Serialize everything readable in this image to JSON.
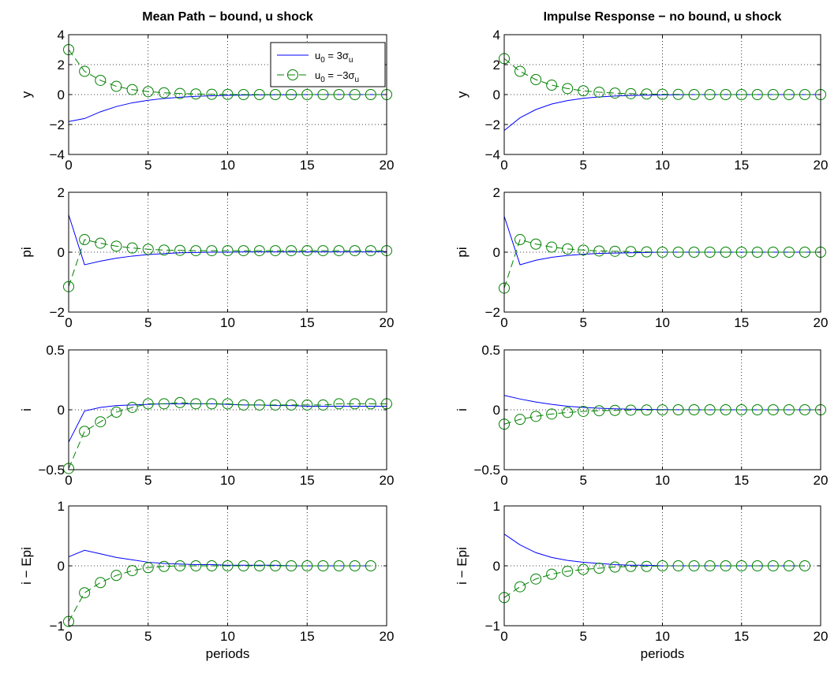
{
  "chart_data": [
    {
      "type": "line",
      "panel": "y-left",
      "title": "Mean Path − bound, u shock",
      "ylabel": "y",
      "xlabel": "",
      "xlim": [
        0,
        20
      ],
      "ylim": [
        -4,
        4
      ],
      "xticks": [
        "0",
        "5",
        "10",
        "15",
        "20"
      ],
      "yticks": [
        "−4",
        "−2",
        "0",
        "2",
        "4"
      ],
      "grid": true,
      "legend": {
        "position": "top-right",
        "entries": [
          {
            "series": 0,
            "prefix": "u",
            "sub1": "0",
            "mid": " =  3σ",
            "sub2": "u"
          },
          {
            "series": 1,
            "prefix": "u",
            "sub1": "0",
            "mid": " = −3σ",
            "sub2": "u"
          }
        ]
      },
      "series": [
        {
          "color": "#0000ff",
          "style": "solid",
          "marker": "none",
          "x": [
            0,
            1,
            2,
            3,
            4,
            5,
            6,
            7,
            8,
            9,
            10,
            11,
            12,
            13,
            14,
            15,
            16,
            17,
            18,
            19,
            20
          ],
          "values": [
            -1.8,
            -1.6,
            -1.15,
            -0.8,
            -0.55,
            -0.38,
            -0.26,
            -0.18,
            -0.12,
            -0.08,
            -0.05,
            -0.03,
            -0.02,
            -0.01,
            -0.01,
            0,
            0,
            0,
            0,
            0,
            0
          ]
        },
        {
          "color": "#008000",
          "style": "dashed",
          "marker": "circle",
          "x": [
            0,
            1,
            2,
            3,
            4,
            5,
            6,
            7,
            8,
            9,
            10,
            11,
            12,
            13,
            14,
            15,
            16,
            17,
            18,
            19,
            20
          ],
          "values": [
            3.0,
            1.55,
            0.95,
            0.55,
            0.33,
            0.2,
            0.12,
            0.07,
            0.04,
            0.02,
            0.01,
            0,
            0,
            0,
            0,
            0,
            0,
            0,
            0,
            0,
            0
          ]
        }
      ]
    },
    {
      "type": "line",
      "panel": "y-right",
      "title": "Impulse Response − no bound, u shock",
      "ylabel": "y",
      "xlabel": "",
      "xlim": [
        0,
        20
      ],
      "ylim": [
        -4,
        4
      ],
      "xticks": [
        "0",
        "5",
        "10",
        "15",
        "20"
      ],
      "yticks": [
        "−4",
        "−2",
        "0",
        "2",
        "4"
      ],
      "grid": true,
      "series": [
        {
          "color": "#0000ff",
          "style": "solid",
          "marker": "none",
          "x": [
            0,
            1,
            2,
            3,
            4,
            5,
            6,
            7,
            8,
            9,
            10,
            11,
            12,
            13,
            14,
            15,
            16,
            17,
            18,
            19,
            20
          ],
          "values": [
            -2.4,
            -1.55,
            -1.0,
            -0.63,
            -0.4,
            -0.25,
            -0.16,
            -0.1,
            -0.06,
            -0.04,
            -0.02,
            -0.01,
            0,
            0,
            0,
            0,
            0,
            0,
            0,
            0,
            0
          ]
        },
        {
          "color": "#008000",
          "style": "dashed",
          "marker": "circle",
          "x": [
            0,
            1,
            2,
            3,
            4,
            5,
            6,
            7,
            8,
            9,
            10,
            11,
            12,
            13,
            14,
            15,
            16,
            17,
            18,
            19,
            20
          ],
          "values": [
            2.4,
            1.55,
            1.0,
            0.63,
            0.4,
            0.25,
            0.16,
            0.1,
            0.06,
            0.04,
            0.02,
            0.01,
            0,
            0,
            0,
            0,
            0,
            0,
            0,
            0,
            0
          ]
        }
      ]
    },
    {
      "type": "line",
      "panel": "pi-left",
      "title": "",
      "ylabel": "pi",
      "xlabel": "",
      "xlim": [
        0,
        20
      ],
      "ylim": [
        -2,
        2
      ],
      "xticks": [
        "0",
        "5",
        "10",
        "15",
        "20"
      ],
      "yticks": [
        "−2",
        "0",
        "2"
      ],
      "grid": true,
      "series": [
        {
          "color": "#0000ff",
          "style": "solid",
          "marker": "none",
          "x": [
            0,
            1,
            2,
            3,
            4,
            5,
            6,
            7,
            8,
            9,
            10,
            11,
            12,
            13,
            14,
            15,
            16,
            17,
            18,
            19,
            20
          ],
          "values": [
            1.25,
            -0.42,
            -0.3,
            -0.2,
            -0.13,
            -0.08,
            -0.05,
            -0.02,
            -0.01,
            0,
            0,
            0.01,
            0.01,
            0.01,
            0.01,
            0.01,
            0.01,
            0.01,
            0.01,
            0.01,
            0.02
          ]
        },
        {
          "color": "#008000",
          "style": "dashed",
          "marker": "circle",
          "x": [
            0,
            1,
            2,
            3,
            4,
            5,
            6,
            7,
            8,
            9,
            10,
            11,
            12,
            13,
            14,
            15,
            16,
            17,
            18,
            19,
            20
          ],
          "values": [
            -1.15,
            0.42,
            0.3,
            0.2,
            0.14,
            0.1,
            0.07,
            0.06,
            0.05,
            0.05,
            0.05,
            0.05,
            0.05,
            0.05,
            0.05,
            0.05,
            0.05,
            0.05,
            0.05,
            0.05,
            0.05
          ]
        }
      ]
    },
    {
      "type": "line",
      "panel": "pi-right",
      "title": "",
      "ylabel": "pi",
      "xlabel": "",
      "xlim": [
        0,
        20
      ],
      "ylim": [
        -2,
        2
      ],
      "xticks": [
        "0",
        "5",
        "10",
        "15",
        "20"
      ],
      "yticks": [
        "−2",
        "0",
        "2"
      ],
      "grid": true,
      "series": [
        {
          "color": "#0000ff",
          "style": "solid",
          "marker": "none",
          "x": [
            0,
            1,
            2,
            3,
            4,
            5,
            6,
            7,
            8,
            9,
            10,
            11,
            12,
            13,
            14,
            15,
            16,
            17,
            18,
            19,
            20
          ],
          "values": [
            1.2,
            -0.42,
            -0.27,
            -0.17,
            -0.11,
            -0.07,
            -0.04,
            -0.03,
            -0.02,
            -0.01,
            0,
            0,
            0,
            0,
            0,
            0,
            0,
            0,
            0,
            0,
            0
          ]
        },
        {
          "color": "#008000",
          "style": "dashed",
          "marker": "circle",
          "x": [
            0,
            1,
            2,
            3,
            4,
            5,
            6,
            7,
            8,
            9,
            10,
            11,
            12,
            13,
            14,
            15,
            16,
            17,
            18,
            19,
            20
          ],
          "values": [
            -1.2,
            0.42,
            0.27,
            0.17,
            0.11,
            0.07,
            0.04,
            0.03,
            0.02,
            0.01,
            0,
            0,
            0,
            0,
            0,
            0,
            0,
            0,
            0,
            0,
            0
          ]
        }
      ]
    },
    {
      "type": "line",
      "panel": "i-left",
      "title": "",
      "ylabel": "i",
      "xlabel": "",
      "xlim": [
        0,
        20
      ],
      "ylim": [
        -0.5,
        0.5
      ],
      "xticks": [
        "0",
        "5",
        "10",
        "15",
        "20"
      ],
      "yticks": [
        "−0.5",
        "0",
        "0.5"
      ],
      "grid": true,
      "series": [
        {
          "color": "#0000ff",
          "style": "solid",
          "marker": "none",
          "x": [
            0,
            1,
            2,
            3,
            4,
            5,
            6,
            7,
            8,
            9,
            10,
            11,
            12,
            13,
            14,
            15,
            16,
            17,
            18,
            19,
            20
          ],
          "values": [
            -0.27,
            -0.01,
            0.02,
            0.035,
            0.04,
            0.045,
            0.05,
            0.05,
            0.05,
            0.05,
            0.045,
            0.04,
            0.04,
            0.035,
            0.035,
            0.03,
            0.03,
            0.03,
            0.03,
            0.03,
            0.03
          ]
        },
        {
          "color": "#008000",
          "style": "dashed",
          "marker": "circle",
          "x": [
            0,
            1,
            2,
            3,
            4,
            5,
            6,
            7,
            8,
            9,
            10,
            11,
            12,
            13,
            14,
            15,
            16,
            17,
            18,
            19,
            20
          ],
          "values": [
            -0.49,
            -0.18,
            -0.1,
            -0.02,
            0.02,
            0.05,
            0.05,
            0.06,
            0.05,
            0.05,
            0.05,
            0.04,
            0.04,
            0.04,
            0.04,
            0.04,
            0.04,
            0.05,
            0.05,
            0.05,
            0.05
          ]
        }
      ]
    },
    {
      "type": "line",
      "panel": "i-right",
      "title": "",
      "ylabel": "i",
      "xlabel": "",
      "xlim": [
        0,
        20
      ],
      "ylim": [
        -0.5,
        0.5
      ],
      "xticks": [
        "0",
        "5",
        "10",
        "15",
        "20"
      ],
      "yticks": [
        "−0.5",
        "0",
        "0.5"
      ],
      "grid": true,
      "series": [
        {
          "color": "#0000ff",
          "style": "solid",
          "marker": "none",
          "x": [
            0,
            1,
            2,
            3,
            4,
            5,
            6,
            7,
            8,
            9,
            10,
            11,
            12,
            13,
            14,
            15,
            16,
            17,
            18,
            19,
            20
          ],
          "values": [
            0.12,
            0.09,
            0.065,
            0.045,
            0.03,
            0.02,
            0.013,
            0.008,
            0.005,
            0.003,
            0.002,
            0.001,
            0,
            0,
            0,
            0,
            0,
            0,
            0,
            0,
            0
          ]
        },
        {
          "color": "#008000",
          "style": "dashed",
          "marker": "circle",
          "x": [
            0,
            1,
            2,
            3,
            4,
            5,
            6,
            7,
            8,
            9,
            10,
            11,
            12,
            13,
            14,
            15,
            16,
            17,
            18,
            19,
            20
          ],
          "values": [
            -0.12,
            -0.08,
            -0.055,
            -0.035,
            -0.022,
            -0.013,
            -0.008,
            -0.005,
            -0.003,
            -0.002,
            -0.001,
            0,
            0,
            0,
            0,
            0,
            0,
            0,
            0,
            0,
            0
          ]
        }
      ]
    },
    {
      "type": "line",
      "panel": "iepi-left",
      "title": "",
      "ylabel": "i − Epi",
      "xlabel": "periods",
      "xlim": [
        0,
        20
      ],
      "ylim": [
        -1,
        1
      ],
      "xticks": [
        "0",
        "5",
        "10",
        "15",
        "20"
      ],
      "yticks": [
        "−1",
        "0",
        "1"
      ],
      "grid": true,
      "series": [
        {
          "color": "#0000ff",
          "style": "solid",
          "marker": "none",
          "x": [
            0,
            1,
            2,
            3,
            4,
            5,
            6,
            7,
            8,
            9,
            10,
            11,
            12,
            13,
            14,
            15,
            16,
            17,
            18,
            19
          ],
          "values": [
            0.15,
            0.26,
            0.2,
            0.14,
            0.1,
            0.06,
            0.04,
            0.03,
            0.02,
            0.02,
            0.01,
            0.01,
            0.01,
            0.01,
            0,
            0,
            0,
            0,
            0,
            0
          ]
        },
        {
          "color": "#008000",
          "style": "dashed",
          "marker": "circle",
          "x": [
            0,
            1,
            2,
            3,
            4,
            5,
            6,
            7,
            8,
            9,
            10,
            11,
            12,
            13,
            14,
            15,
            16,
            17,
            18,
            19
          ],
          "values": [
            -0.93,
            -0.45,
            -0.28,
            -0.16,
            -0.08,
            -0.03,
            -0.01,
            0,
            0,
            0,
            0,
            0,
            0,
            0,
            0,
            0,
            0,
            0,
            0,
            0
          ]
        }
      ]
    },
    {
      "type": "line",
      "panel": "iepi-right",
      "title": "",
      "ylabel": "i − Epi",
      "xlabel": "periods",
      "xlim": [
        0,
        20
      ],
      "ylim": [
        -1,
        1
      ],
      "xticks": [
        "0",
        "5",
        "10",
        "15",
        "20"
      ],
      "yticks": [
        "−1",
        "0",
        "1"
      ],
      "grid": true,
      "series": [
        {
          "color": "#0000ff",
          "style": "solid",
          "marker": "none",
          "x": [
            0,
            1,
            2,
            3,
            4,
            5,
            6,
            7,
            8,
            9,
            10,
            11,
            12,
            13,
            14,
            15,
            16,
            17,
            18,
            19
          ],
          "values": [
            0.53,
            0.35,
            0.22,
            0.14,
            0.09,
            0.06,
            0.04,
            0.02,
            0.01,
            0.01,
            0,
            0,
            0,
            0,
            0,
            0,
            0,
            0,
            0,
            0
          ]
        },
        {
          "color": "#008000",
          "style": "dashed",
          "marker": "circle",
          "x": [
            0,
            1,
            2,
            3,
            4,
            5,
            6,
            7,
            8,
            9,
            10,
            11,
            12,
            13,
            14,
            15,
            16,
            17,
            18,
            19
          ],
          "values": [
            -0.53,
            -0.35,
            -0.22,
            -0.14,
            -0.09,
            -0.06,
            -0.04,
            -0.02,
            -0.01,
            -0.01,
            0,
            0,
            0,
            0,
            0,
            0,
            0,
            0,
            0,
            0
          ]
        }
      ]
    }
  ]
}
